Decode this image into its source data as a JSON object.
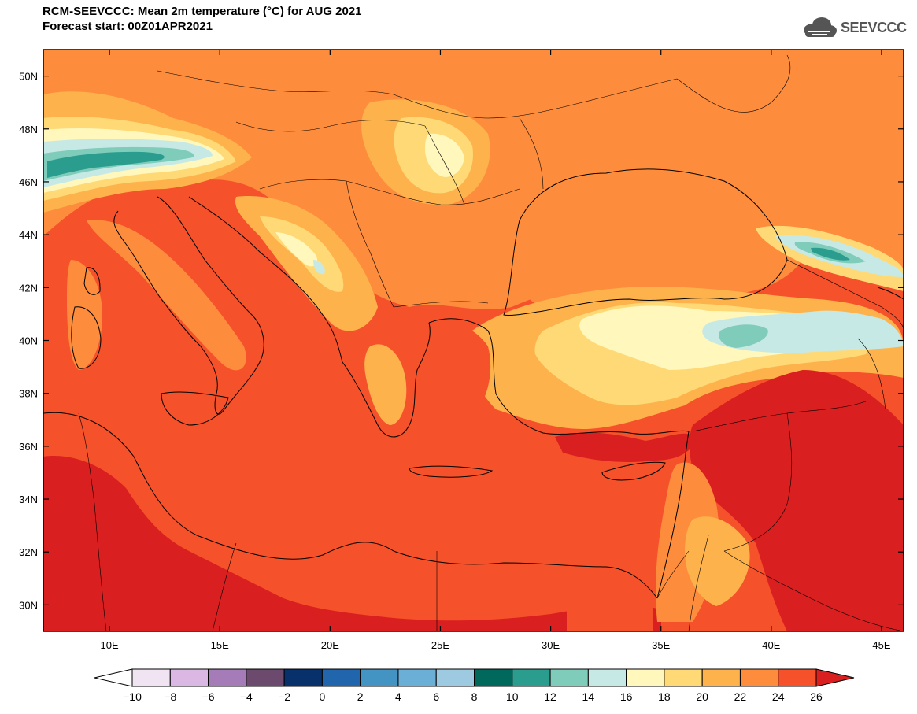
{
  "header": {
    "title_line1": "RCM-SEEVCCC: Mean 2m temperature (°C) for AUG 2021",
    "title_line2": "Forecast start: 00Z01APR2021"
  },
  "logo": {
    "text": "SEEVCCC",
    "icon": "cloud-icon"
  },
  "map": {
    "lat_labels": [
      "50N",
      "48N",
      "46N",
      "44N",
      "42N",
      "40N",
      "38N",
      "36N",
      "34N",
      "32N",
      "30N"
    ],
    "lon_labels": [
      "10E",
      "15E",
      "20E",
      "25E",
      "30E",
      "35E",
      "40E",
      "45E"
    ],
    "lat_values": [
      50,
      48,
      46,
      44,
      42,
      40,
      38,
      36,
      34,
      32,
      30
    ],
    "lon_values": [
      10,
      15,
      20,
      25,
      30,
      35,
      40,
      45
    ],
    "lon_range": [
      7,
      46
    ],
    "lat_range": [
      29,
      51
    ]
  },
  "colorbar": {
    "labels": [
      "-10",
      "-8",
      "-6",
      "-4",
      "-2",
      "0",
      "2",
      "4",
      "6",
      "8",
      "10",
      "12",
      "14",
      "16",
      "18",
      "20",
      "22",
      "24",
      "26"
    ],
    "under_color": "#ffffff",
    "over_color": "#d91f1f",
    "colors": [
      "#f1e4f2",
      "#dab8e3",
      "#a57cb8",
      "#6b4a6e",
      "#08306b",
      "#2166ac",
      "#4393c3",
      "#6baed6",
      "#9ecae1",
      "#00695c",
      "#2a9d8f",
      "#7fccba",
      "#c7e9e6",
      "#fff7bc",
      "#fed976",
      "#feb24c",
      "#fd8d3c",
      "#f5512a"
    ]
  },
  "palette": {
    "c14": "#c7e9e6",
    "c12": "#7fccba",
    "c10": "#2a9d8f",
    "c8": "#00695c",
    "c16": "#fff7bc",
    "c18": "#fed976",
    "c20": "#feb24c",
    "c22": "#fd8d3c",
    "c24": "#f5512a",
    "c26": "#d91f1f"
  }
}
